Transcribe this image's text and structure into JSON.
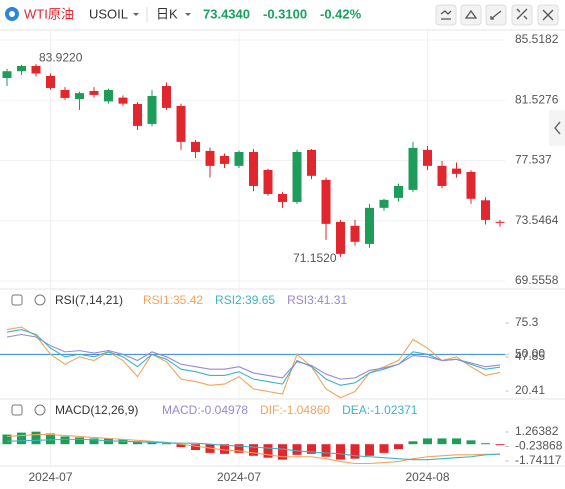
{
  "header": {
    "name": "WTI原油",
    "symbol": "USOIL",
    "period": "日K",
    "price": "73.4340",
    "change": "-0.3100",
    "pct": "-0.42%"
  },
  "chart_data": [
    {
      "type": "candlestick",
      "up_color": "#1e9c5a",
      "down_color": "#e2262d",
      "categories": [
        null,
        null,
        null,
        "2024-07",
        null,
        null,
        null,
        null,
        null,
        null,
        null,
        null,
        null,
        null,
        null,
        null,
        "2024-07",
        null,
        null,
        null,
        null,
        null,
        null,
        null,
        null,
        null,
        null,
        null,
        null,
        "2024-08",
        null,
        null,
        null,
        null,
        null
      ],
      "open": [
        83.0,
        83.45,
        83.8,
        83.14,
        82.21,
        81.6,
        82.14,
        81.45,
        81.7,
        81.28,
        79.96,
        82.47,
        81.15,
        78.77,
        78.17,
        77.84,
        77.18,
        78.1,
        76.91,
        75.32,
        74.79,
        78.24,
        76.25,
        73.47,
        73.21,
        72.01,
        74.4,
        75.06,
        75.59,
        78.24,
        77.18,
        77.0,
        76.78,
        74.9,
        73.47
      ],
      "high": [
        83.6,
        83.88,
        83.922,
        83.3,
        82.4,
        82.1,
        82.4,
        82.3,
        81.85,
        81.4,
        82.2,
        82.7,
        81.3,
        78.9,
        78.4,
        78.0,
        78.2,
        78.3,
        77.0,
        75.46,
        78.24,
        78.3,
        76.4,
        73.6,
        73.6,
        74.66,
        75.0,
        76.0,
        78.77,
        78.5,
        77.5,
        77.4,
        76.9,
        75.1,
        73.6
      ],
      "low": [
        82.47,
        83.2,
        83.1,
        82.21,
        81.55,
        80.88,
        81.7,
        81.3,
        81.15,
        79.56,
        79.8,
        80.88,
        78.24,
        77.7,
        76.4,
        77.04,
        77.04,
        75.5,
        75.2,
        74.4,
        74.66,
        76.3,
        72.28,
        71.152,
        71.9,
        71.75,
        74.2,
        74.8,
        75.46,
        76.9,
        75.7,
        76.4,
        74.66,
        73.3,
        73.15
      ],
      "close": [
        83.45,
        83.8,
        83.3,
        82.34,
        81.68,
        82.0,
        81.88,
        82.21,
        81.3,
        79.83,
        81.81,
        81.02,
        78.77,
        78.1,
        77.18,
        77.31,
        78.1,
        75.85,
        75.32,
        74.79,
        78.1,
        76.52,
        73.34,
        71.35,
        72.15,
        74.4,
        74.93,
        75.85,
        78.37,
        77.18,
        75.85,
        76.65,
        75.0,
        73.6,
        73.434
      ],
      "annotations": {
        "high": "83.9220",
        "low": "71.1520"
      },
      "ylim": [
        69.09,
        86.18
      ],
      "yticks": [
        85.5182,
        81.5276,
        77.537,
        73.5464,
        69.5558
      ],
      "grid": true
    },
    {
      "type": "line",
      "name": "RSI(7,14,21)",
      "series": [
        {
          "name": "RSI1:35.42",
          "color": "#f3a35c",
          "values": [
            70,
            72,
            65,
            50,
            42,
            48,
            45,
            52,
            45,
            32,
            50,
            44,
            30,
            28,
            25,
            26,
            32,
            22,
            20,
            18,
            50,
            40,
            22,
            15,
            20,
            35,
            40,
            45,
            62,
            55,
            45,
            48,
            40,
            33,
            35.42
          ]
        },
        {
          "name": "RSI2:39.65",
          "color": "#3db4c6",
          "values": [
            68,
            70,
            66,
            55,
            48,
            50,
            48,
            52,
            48,
            40,
            50,
            46,
            38,
            36,
            33,
            33,
            36,
            30,
            28,
            26,
            45,
            40,
            30,
            25,
            27,
            35,
            38,
            42,
            52,
            50,
            45,
            46,
            42,
            38,
            39.65
          ]
        },
        {
          "name": "RSI3:41.31",
          "color": "#9a87d0",
          "values": [
            64,
            66,
            64,
            57,
            52,
            53,
            51,
            53,
            50,
            45,
            52,
            48,
            42,
            40,
            38,
            38,
            40,
            35,
            33,
            31,
            44,
            41,
            34,
            30,
            31,
            37,
            39,
            42,
            49,
            48,
            45,
            46,
            43,
            40,
            41.31
          ]
        }
      ],
      "ylim": [
        14.76,
        101.93
      ],
      "yticks": [
        75.3,
        {
          "value": 50,
          "label": "50.00"
        },
        47.85,
        20.41
      ],
      "ref_line": {
        "value": 50,
        "color": "#2f86d6"
      }
    },
    {
      "type": "macd",
      "name": "MACD(12,26,9)",
      "up_color": "#1e9c5a",
      "down_color": "#e2262d",
      "histogram": {
        "name": "MACD:-0.04978",
        "color": "#9a87d0",
        "values": [
          1.0,
          1.2,
          1.3,
          1.1,
          0.8,
          0.7,
          0.6,
          0.6,
          0.5,
          0.3,
          0.3,
          0.1,
          -0.3,
          -0.6,
          -0.9,
          -1.0,
          -0.9,
          -1.2,
          -1.4,
          -1.6,
          -1.1,
          -1.0,
          -1.3,
          -1.6,
          -1.5,
          -1.2,
          -0.9,
          -0.5,
          0.3,
          0.6,
          0.6,
          0.6,
          0.4,
          0.1,
          -0.04978
        ]
      },
      "series": [
        {
          "name": "DIF:-1.04860",
          "color": "#f3a35c",
          "values": [
            0.8,
            0.9,
            1.0,
            1.0,
            0.9,
            0.8,
            0.7,
            0.6,
            0.5,
            0.4,
            0.3,
            0.2,
            0,
            -0.2,
            -0.4,
            -0.6,
            -0.7,
            -0.9,
            -1.1,
            -1.3,
            -1.3,
            -1.3,
            -1.5,
            -1.8,
            -2.0,
            -2.0,
            -1.9,
            -1.8,
            -1.5,
            -1.3,
            -1.2,
            -1.1,
            -1.1,
            -1.05,
            -1.0486
          ]
        },
        {
          "name": "DEA:-1.02371",
          "color": "#3db4c6",
          "values": [
            0.3,
            0.35,
            0.4,
            0.45,
            0.5,
            0.5,
            0.45,
            0.35,
            0.3,
            0.25,
            0.2,
            0.15,
            0.1,
            0.1,
            0,
            -0.1,
            -0.2,
            -0.3,
            -0.4,
            -0.5,
            -0.7,
            -0.8,
            -0.9,
            -1.0,
            -1.2,
            -1.3,
            -1.4,
            -1.5,
            -1.6,
            -1.6,
            -1.5,
            -1.4,
            -1.3,
            -1.1,
            -1.02371
          ]
        }
      ],
      "ylim": [
        -2.466,
        4.58
      ],
      "yticks": [
        1.26382,
        -0.23868,
        -1.74117
      ]
    }
  ]
}
